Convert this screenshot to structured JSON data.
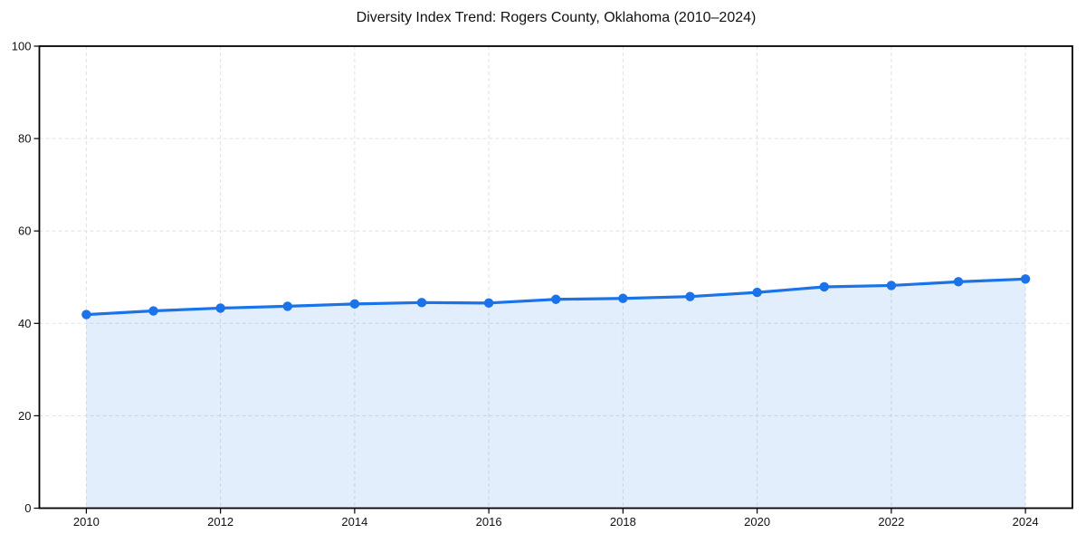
{
  "chart_data": {
    "type": "line",
    "title": "Diversity Index Trend: Rogers County, Oklahoma (2010–2024)",
    "x": [
      2010,
      2011,
      2012,
      2013,
      2014,
      2015,
      2016,
      2017,
      2018,
      2019,
      2020,
      2021,
      2022,
      2023,
      2024
    ],
    "series": [
      {
        "name": "Diversity Index",
        "values": [
          41.9,
          42.7,
          43.3,
          43.7,
          44.2,
          44.5,
          44.4,
          45.2,
          45.4,
          45.8,
          46.7,
          47.9,
          48.2,
          49.0,
          49.6
        ]
      }
    ],
    "xlabel": "",
    "ylabel": "",
    "xlim": [
      2009.3,
      2024.7
    ],
    "ylim": [
      0,
      100
    ],
    "xticks": [
      2010,
      2012,
      2014,
      2016,
      2018,
      2020,
      2022,
      2024
    ],
    "yticks": [
      0,
      20,
      40,
      60,
      80,
      100
    ],
    "grid": true,
    "grid_style": "dashed",
    "legend_position": "none",
    "marker": "circle",
    "area_fill": true,
    "colors": {
      "line": "#1a73e8",
      "marker": "#1a73e8",
      "fill": "rgba(26,115,232,0.12)",
      "gridline": "#e1e1e1",
      "axis": "#000000",
      "title_text": "#111111",
      "tick_text": "#111111",
      "background": "#ffffff"
    }
  }
}
